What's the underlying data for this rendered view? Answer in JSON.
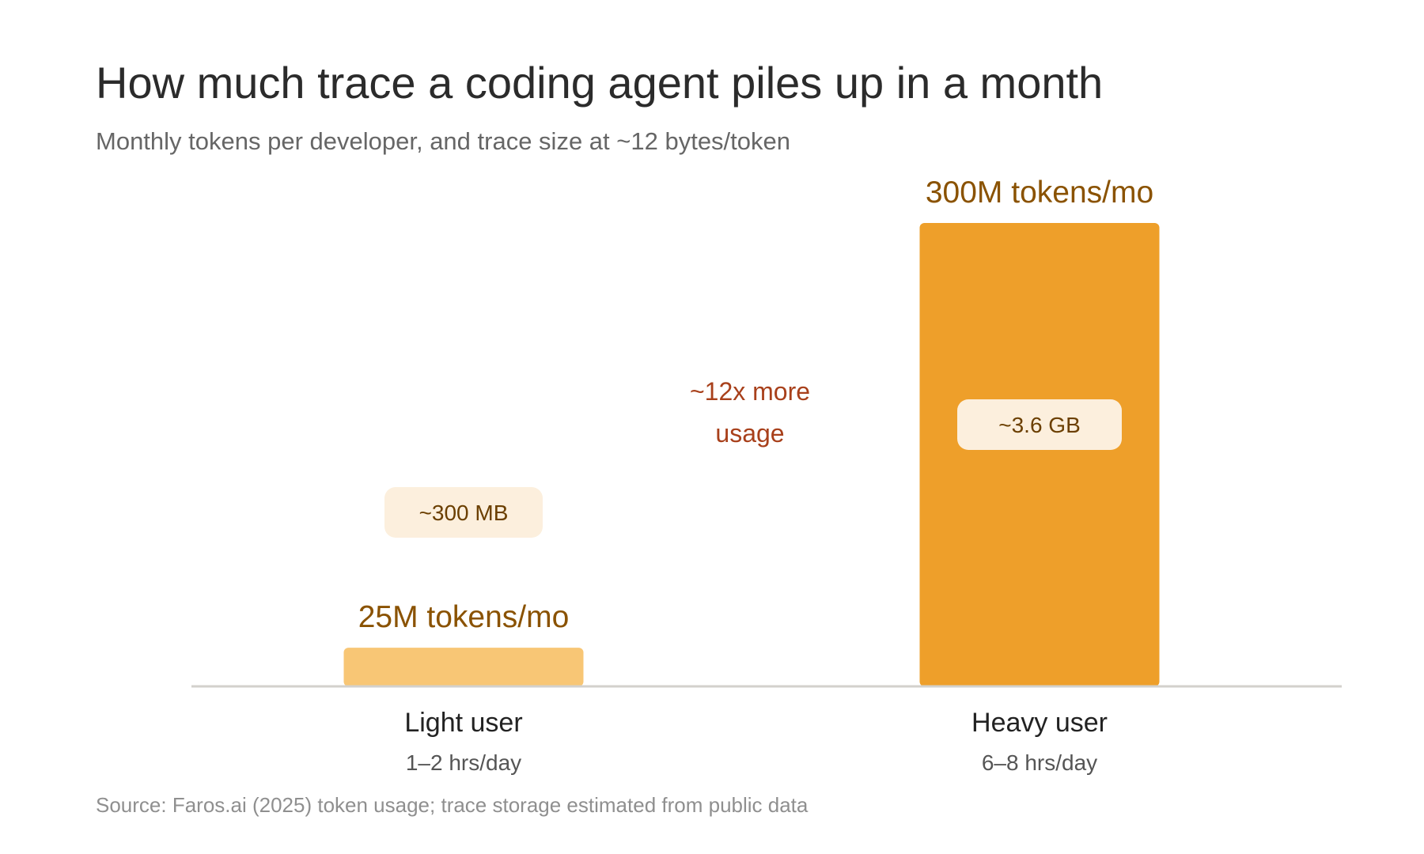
{
  "chart_data": {
    "type": "bar",
    "title": "How much trace a coding agent piles up in a month",
    "subtitle": "Monthly tokens per developer, and trace size at ~12 bytes/token",
    "categories": [
      "Light user",
      "Heavy user"
    ],
    "category_sublabels": [
      "1–2 hrs/day",
      "6–8 hrs/day"
    ],
    "values": [
      25,
      300
    ],
    "value_unit": "M tokens/mo",
    "value_labels": [
      "25M tokens/mo",
      "300M tokens/mo"
    ],
    "trace_size_labels": [
      "~300 MB",
      "~3.6 GB"
    ],
    "comparison_annotation": [
      "~12x more",
      "usage"
    ],
    "ylim": [
      0,
      300
    ],
    "grid": false,
    "legend": "none",
    "source": "Source: Faros.ai (2025) token usage; trace storage estimated from public data",
    "colors": {
      "light_bar": "#f8c675",
      "heavy_bar": "#ee9f2a",
      "pill_fill": "#fcefdd",
      "value_text": "#8a5200",
      "annotation_text": "#a8401b",
      "axis": "#d3d1cc"
    }
  }
}
